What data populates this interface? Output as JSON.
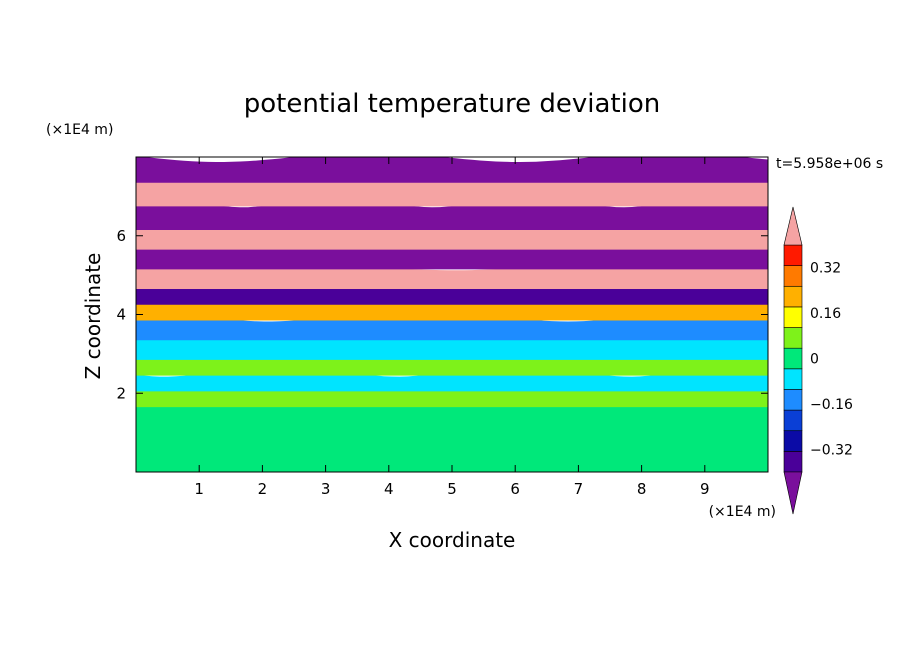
{
  "chart_data": {
    "type": "heatmap",
    "title": "potential temperature deviation",
    "xlabel": "X coordinate",
    "ylabel": "Z coordinate",
    "x_unit": "(×1E4 m)",
    "y_unit": "(×1E4 m)",
    "time_label": "t=5.958e+06 s",
    "xlim": [
      0,
      10
    ],
    "ylim": [
      0,
      8
    ],
    "x_ticks": [
      "1",
      "2",
      "3",
      "4",
      "5",
      "6",
      "7",
      "8",
      "9"
    ],
    "y_ticks": [
      "2",
      "4",
      "6"
    ],
    "colorbar": {
      "levels": [
        -0.48,
        -0.4,
        -0.32,
        -0.24,
        -0.16,
        -0.08,
        0,
        0.08,
        0.16,
        0.24,
        0.32,
        0.4,
        0.48
      ],
      "tick_labels": [
        "0.32",
        "0.16",
        "0",
        "−0.16",
        "−0.32"
      ],
      "colors": [
        "#7a0f9c",
        "#4a0099",
        "#0b0ba6",
        "#0a3fd6",
        "#1e8cff",
        "#00e4ff",
        "#00e87a",
        "#7ef21a",
        "#ffff00",
        "#ffb000",
        "#ff7a00",
        "#ff1a00",
        "#f5a3a3"
      ],
      "extend": "both"
    },
    "bands": [
      {
        "z0": 0.0,
        "z1": 1.8,
        "value": 0.05
      },
      {
        "z0": 1.8,
        "z1": 2.2,
        "value": 0.12
      },
      {
        "z0": 2.2,
        "z1": 2.6,
        "value": -0.05
      },
      {
        "z0": 2.6,
        "z1": 3.0,
        "value": 0.1
      },
      {
        "z0": 3.0,
        "z1": 3.5,
        "value": -0.02
      },
      {
        "z0": 3.5,
        "z1": 4.0,
        "value": -0.12
      },
      {
        "z0": 4.0,
        "z1": 4.4,
        "value": 0.3
      },
      {
        "z0": 4.4,
        "z1": 4.8,
        "value": -0.38
      },
      {
        "z0": 4.8,
        "z1": 5.3,
        "value": 0.5
      },
      {
        "z0": 5.3,
        "z1": 5.8,
        "value": -0.5
      },
      {
        "z0": 5.8,
        "z1": 6.3,
        "value": 0.5
      },
      {
        "z0": 6.3,
        "z1": 6.9,
        "value": -0.5
      },
      {
        "z0": 6.9,
        "z1": 7.5,
        "value": 0.5
      },
      {
        "z0": 7.5,
        "z1": 8.0,
        "value": -0.5
      }
    ]
  }
}
